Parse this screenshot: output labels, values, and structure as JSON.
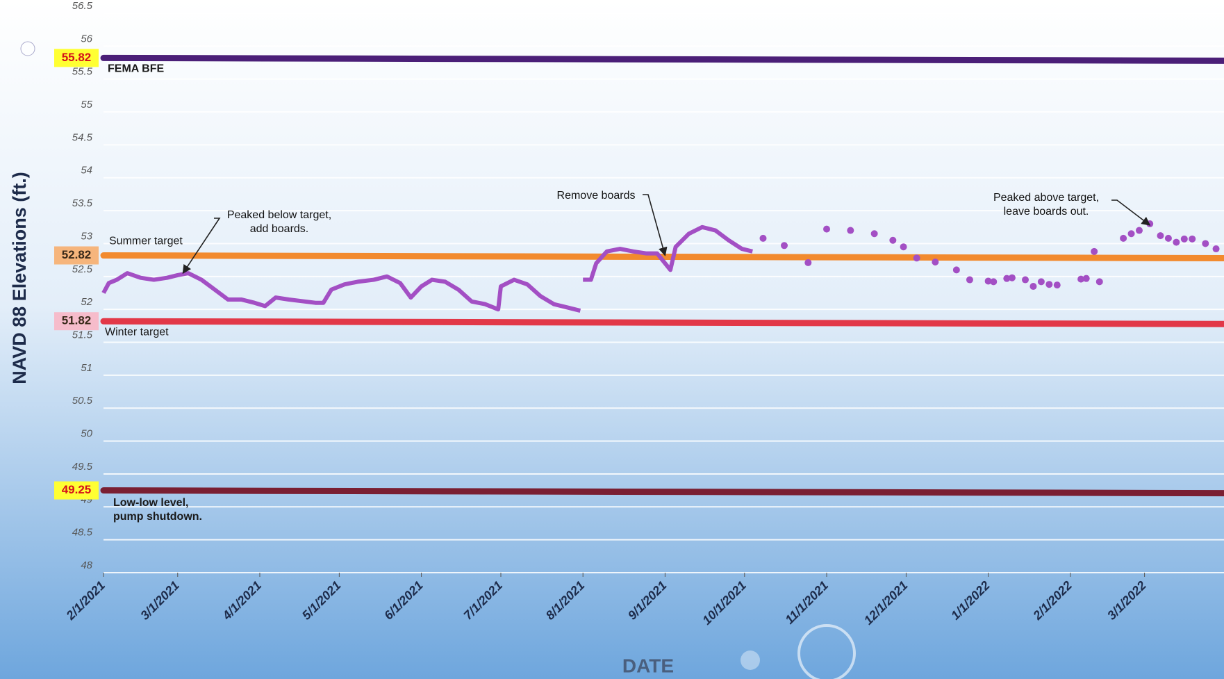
{
  "chart_data": {
    "type": "scatter",
    "y_label": "NAVD 88 Elevations (ft.)",
    "x_label": "DATE",
    "ylim": [
      48,
      56.5
    ],
    "yticks": [
      48,
      48.5,
      49,
      49.5,
      50,
      50.5,
      51,
      51.5,
      52,
      52.5,
      53,
      53.5,
      54,
      54.5,
      55,
      55.5,
      56,
      56.5
    ],
    "xlim": [
      "2021-02-01",
      "2022-03-31"
    ],
    "xticks": [
      {
        "value": "2021-02-01",
        "label": "2/1/2021"
      },
      {
        "value": "2021-03-01",
        "label": "3/1/2021"
      },
      {
        "value": "2021-04-01",
        "label": "4/1/2021"
      },
      {
        "value": "2021-05-01",
        "label": "5/1/2021"
      },
      {
        "value": "2021-06-01",
        "label": "6/1/2021"
      },
      {
        "value": "2021-07-01",
        "label": "7/1/2021"
      },
      {
        "value": "2021-08-01",
        "label": "8/1/2021"
      },
      {
        "value": "2021-09-01",
        "label": "9/1/2021"
      },
      {
        "value": "2021-10-01",
        "label": "10/1/2021"
      },
      {
        "value": "2021-11-01",
        "label": "11/1/2021"
      },
      {
        "value": "2021-12-01",
        "label": "12/1/2021"
      },
      {
        "value": "2022-01-01",
        "label": "1/1/2022"
      },
      {
        "value": "2022-02-01",
        "label": "2/1/2022"
      },
      {
        "value": "2022-03-01",
        "label": "3/1/2022"
      }
    ],
    "grid": true,
    "reference_lines": [
      {
        "value": 55.82,
        "text": [
          "FEMA BFE"
        ],
        "color": "#4b1f78",
        "box_color": "#ffff33",
        "text_color": "#d4101a"
      },
      {
        "value": 52.82,
        "text": [
          "Summer target"
        ],
        "color": "#f28a2e",
        "box_color": "#f6b57c",
        "text_color": "#3a2a1a"
      },
      {
        "value": 51.82,
        "text": [
          "Winter target"
        ],
        "color": "#e23848",
        "box_color": "#f6bccb",
        "text_color": "#3a2a1a"
      },
      {
        "value": 49.25,
        "text": [
          "Low-low level,",
          "pump shutdown."
        ],
        "color": "#7a1f32",
        "box_color": "#ffff33",
        "text_color": "#d4101a"
      }
    ],
    "series": [
      {
        "style": "line",
        "color": "#a34fc4",
        "x": [
          "2021-02-01",
          "2021-02-03",
          "2021-02-06",
          "2021-02-10",
          "2021-02-15",
          "2021-02-20",
          "2021-02-25",
          "2021-03-01",
          "2021-03-05",
          "2021-03-10",
          "2021-03-15",
          "2021-03-20",
          "2021-03-25",
          "2021-03-30",
          "2021-04-03",
          "2021-04-07",
          "2021-04-12",
          "2021-04-18",
          "2021-04-22",
          "2021-04-25",
          "2021-04-28",
          "2021-05-03",
          "2021-05-08",
          "2021-05-14",
          "2021-05-19",
          "2021-05-24",
          "2021-05-28",
          "2021-06-01",
          "2021-06-05",
          "2021-06-10",
          "2021-06-15",
          "2021-06-20",
          "2021-06-25",
          "2021-06-30",
          "2021-07-01",
          "2021-07-06",
          "2021-07-11",
          "2021-07-16",
          "2021-07-21",
          "2021-07-26",
          "2021-07-31"
        ],
        "values": [
          52.25,
          52.4,
          52.45,
          52.55,
          52.48,
          52.45,
          52.48,
          52.52,
          52.55,
          52.45,
          52.3,
          52.15,
          52.15,
          52.1,
          52.05,
          52.18,
          52.15,
          52.12,
          52.1,
          52.1,
          52.3,
          52.38,
          52.42,
          52.45,
          52.5,
          52.4,
          52.18,
          52.35,
          52.45,
          52.42,
          52.3,
          52.12,
          52.08,
          52.0,
          52.35,
          52.45,
          52.38,
          52.2,
          52.08,
          52.03,
          51.98
        ]
      },
      {
        "style": "line",
        "color": "#a34fc4",
        "x": [
          "2021-08-01",
          "2021-08-04",
          "2021-08-06",
          "2021-08-10",
          "2021-08-15",
          "2021-08-20",
          "2021-08-25",
          "2021-08-29",
          "2021-09-01",
          "2021-09-03",
          "2021-09-05",
          "2021-09-10",
          "2021-09-15",
          "2021-09-20",
          "2021-09-25",
          "2021-09-30",
          "2021-10-04"
        ],
        "values": [
          52.45,
          52.45,
          52.7,
          52.88,
          52.92,
          52.88,
          52.85,
          52.85,
          52.7,
          52.6,
          52.95,
          53.15,
          53.25,
          53.2,
          53.05,
          52.92,
          52.88
        ]
      },
      {
        "style": "dots",
        "color": "#a34fc4",
        "x": [
          "2021-10-08",
          "2021-10-16",
          "2021-10-25",
          "2021-11-01",
          "2021-11-10",
          "2021-11-19",
          "2021-11-26",
          "2021-11-30",
          "2021-12-05",
          "2021-12-12",
          "2021-12-20",
          "2021-12-25",
          "2022-01-01",
          "2022-01-03",
          "2022-01-08",
          "2022-01-10",
          "2022-01-15",
          "2022-01-18",
          "2022-01-21",
          "2022-01-24",
          "2022-01-27",
          "2022-02-05",
          "2022-02-07",
          "2022-02-10",
          "2022-02-12",
          "2022-02-21",
          "2022-02-24",
          "2022-02-27",
          "2022-03-03",
          "2022-03-07",
          "2022-03-10",
          "2022-03-13",
          "2022-03-16",
          "2022-03-19",
          "2022-03-24",
          "2022-03-28"
        ],
        "values": [
          53.08,
          52.97,
          52.71,
          53.22,
          53.2,
          53.15,
          53.05,
          52.95,
          52.78,
          52.72,
          52.6,
          52.45,
          52.43,
          52.42,
          52.47,
          52.48,
          52.45,
          52.35,
          52.42,
          52.38,
          52.37,
          52.46,
          52.47,
          52.88,
          52.42,
          53.08,
          53.15,
          53.2,
          53.3,
          53.12,
          53.08,
          53.02,
          53.07,
          53.07,
          53.0,
          52.92
        ]
      }
    ],
    "annotations": [
      {
        "text": [
          "Peaked below target,",
          "add boards."
        ],
        "x": "2021-03-03",
        "y": 52.55
      },
      {
        "text": [
          "Remove boards"
        ],
        "x": "2021-09-01",
        "y": 52.82
      },
      {
        "text": [
          "Peaked above target,",
          "leave boards out."
        ],
        "x": "2022-03-03",
        "y": 53.28
      }
    ]
  }
}
